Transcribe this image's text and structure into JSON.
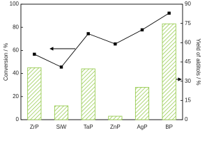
{
  "chart_data": {
    "type": "bar",
    "y_label": "Conversion / %",
    "y2_label": "Yield of alditols / %",
    "categories": [
      "ZrP",
      "SiW",
      "TaP",
      "ZnP",
      "AgP",
      "BP"
    ],
    "series": [
      {
        "color": "#8dc63f",
        "values": [
          45,
          12,
          44,
          3,
          28,
          83
        ]
      },
      {
        "type": "line",
        "color": "#000000",
        "axis": "y2",
        "values": [
          51,
          41,
          67,
          59,
          70,
          83
        ]
      }
    ],
    "ylim": [
      0,
      100
    ],
    "yticks": [
      0,
      20,
      40,
      60,
      80,
      100
    ],
    "y2lim": [
      0,
      90
    ],
    "y2ticks": [
      0,
      15,
      30,
      45,
      60,
      75,
      90
    ]
  }
}
